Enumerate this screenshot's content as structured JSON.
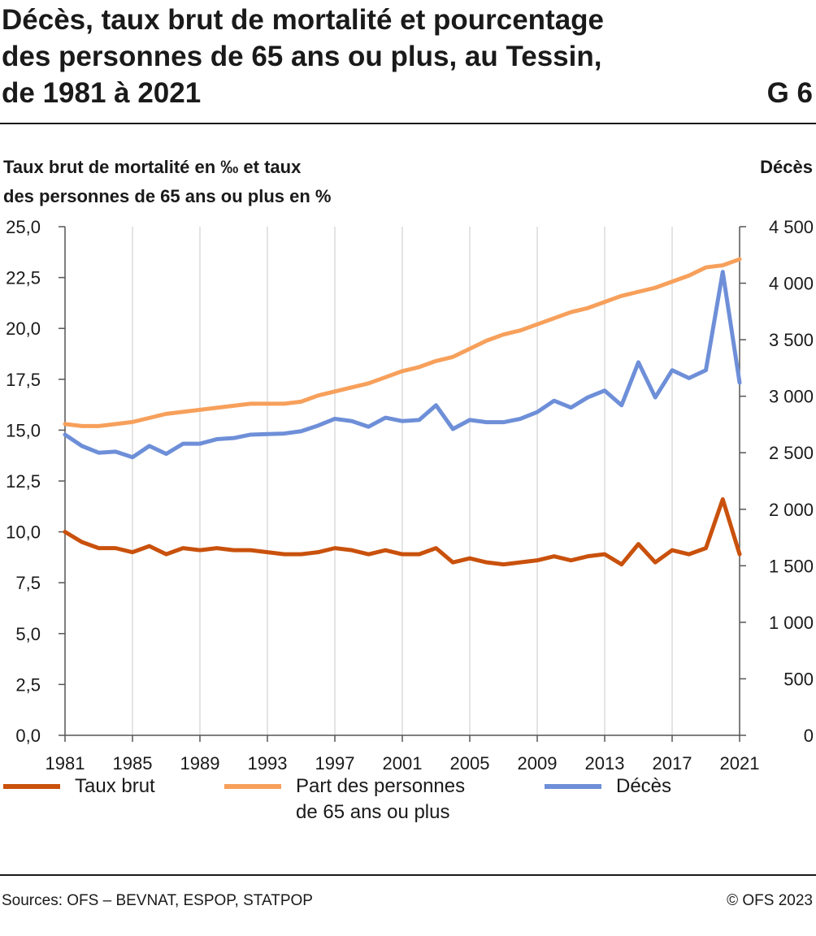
{
  "header": {
    "title_lines": [
      "Décès, taux brut de mortalité et pourcentage",
      "des personnes de 65 ans ou plus, au Tessin,",
      "de 1981 à 2021"
    ],
    "chart_id": "G 6"
  },
  "footer": {
    "source": "Sources: OFS – BEVNAT, ESPOP, STATPOP",
    "copyright": "© OFS 2023"
  },
  "chart_data": {
    "type": "line",
    "ylabel_left_lines": [
      "Taux brut de mortalité en ‰ et taux",
      "des personnes de 65 ans ou plus en %"
    ],
    "ylabel_right": "Décès",
    "ylim_left": [
      0,
      25
    ],
    "ylim_right": [
      0,
      4500
    ],
    "yticks_left": [
      "0,0",
      "2,5",
      "5,0",
      "7,5",
      "10,0",
      "12,5",
      "15,0",
      "17,5",
      "20,0",
      "22,5",
      "25,0"
    ],
    "yticks_right": [
      "0",
      "500",
      "1 000",
      "1 500",
      "2 000",
      "2 500",
      "3 000",
      "3 500",
      "4 000",
      "4 500"
    ],
    "xlim": [
      1981,
      2021
    ],
    "xticks": [
      "1981",
      "1985",
      "1989",
      "1993",
      "1997",
      "2001",
      "2005",
      "2009",
      "2013",
      "2017",
      "2021"
    ],
    "grid": "vertical",
    "x": [
      1981,
      1982,
      1983,
      1984,
      1985,
      1986,
      1987,
      1988,
      1989,
      1990,
      1991,
      1992,
      1993,
      1994,
      1995,
      1996,
      1997,
      1998,
      1999,
      2000,
      2001,
      2002,
      2003,
      2004,
      2005,
      2006,
      2007,
      2008,
      2009,
      2010,
      2011,
      2012,
      2013,
      2014,
      2015,
      2016,
      2017,
      2018,
      2019,
      2020,
      2021
    ],
    "series": [
      {
        "name": "Taux brut",
        "axis": "left",
        "color": "#c9510c",
        "values": [
          10.0,
          9.5,
          9.2,
          9.2,
          9.0,
          9.3,
          8.9,
          9.2,
          9.1,
          9.2,
          9.1,
          9.1,
          9.0,
          8.9,
          8.9,
          9.0,
          9.2,
          9.1,
          8.9,
          9.1,
          8.9,
          8.9,
          9.2,
          8.5,
          8.7,
          8.5,
          8.4,
          8.5,
          8.6,
          8.8,
          8.6,
          8.8,
          8.9,
          8.4,
          9.4,
          8.5,
          9.1,
          8.9,
          9.2,
          11.6,
          8.9
        ]
      },
      {
        "name": "Part des personnes de 65 ans ou plus",
        "axis": "left",
        "color": "#f7a05b",
        "values": [
          15.3,
          15.2,
          15.2,
          15.3,
          15.4,
          15.6,
          15.8,
          15.9,
          16.0,
          16.1,
          16.2,
          16.3,
          16.3,
          16.3,
          16.4,
          16.7,
          16.9,
          17.1,
          17.3,
          17.6,
          17.9,
          18.1,
          18.4,
          18.6,
          19.0,
          19.4,
          19.7,
          19.9,
          20.2,
          20.5,
          20.8,
          21.0,
          21.3,
          21.6,
          21.8,
          22.0,
          22.3,
          22.6,
          23.0,
          23.1,
          23.4
        ]
      },
      {
        "name": "Décès",
        "axis": "right",
        "color": "#6e8fd8",
        "values": [
          2660,
          2560,
          2500,
          2510,
          2460,
          2560,
          2490,
          2580,
          2580,
          2620,
          2630,
          2660,
          2665,
          2670,
          2690,
          2740,
          2800,
          2780,
          2730,
          2810,
          2780,
          2790,
          2920,
          2710,
          2790,
          2770,
          2770,
          2800,
          2860,
          2960,
          2900,
          2990,
          3050,
          2920,
          3300,
          2990,
          3230,
          3160,
          3230,
          4100,
          3120
        ]
      }
    ],
    "legend": {
      "placement": "bottom",
      "items": [
        {
          "label_lines": [
            "Taux brut"
          ],
          "color": "#c9510c"
        },
        {
          "label_lines": [
            "Part des personnes",
            "de 65 ans ou plus"
          ],
          "color": "#f7a05b"
        },
        {
          "label_lines": [
            "Décès"
          ],
          "color": "#6e8fd8"
        }
      ]
    }
  }
}
